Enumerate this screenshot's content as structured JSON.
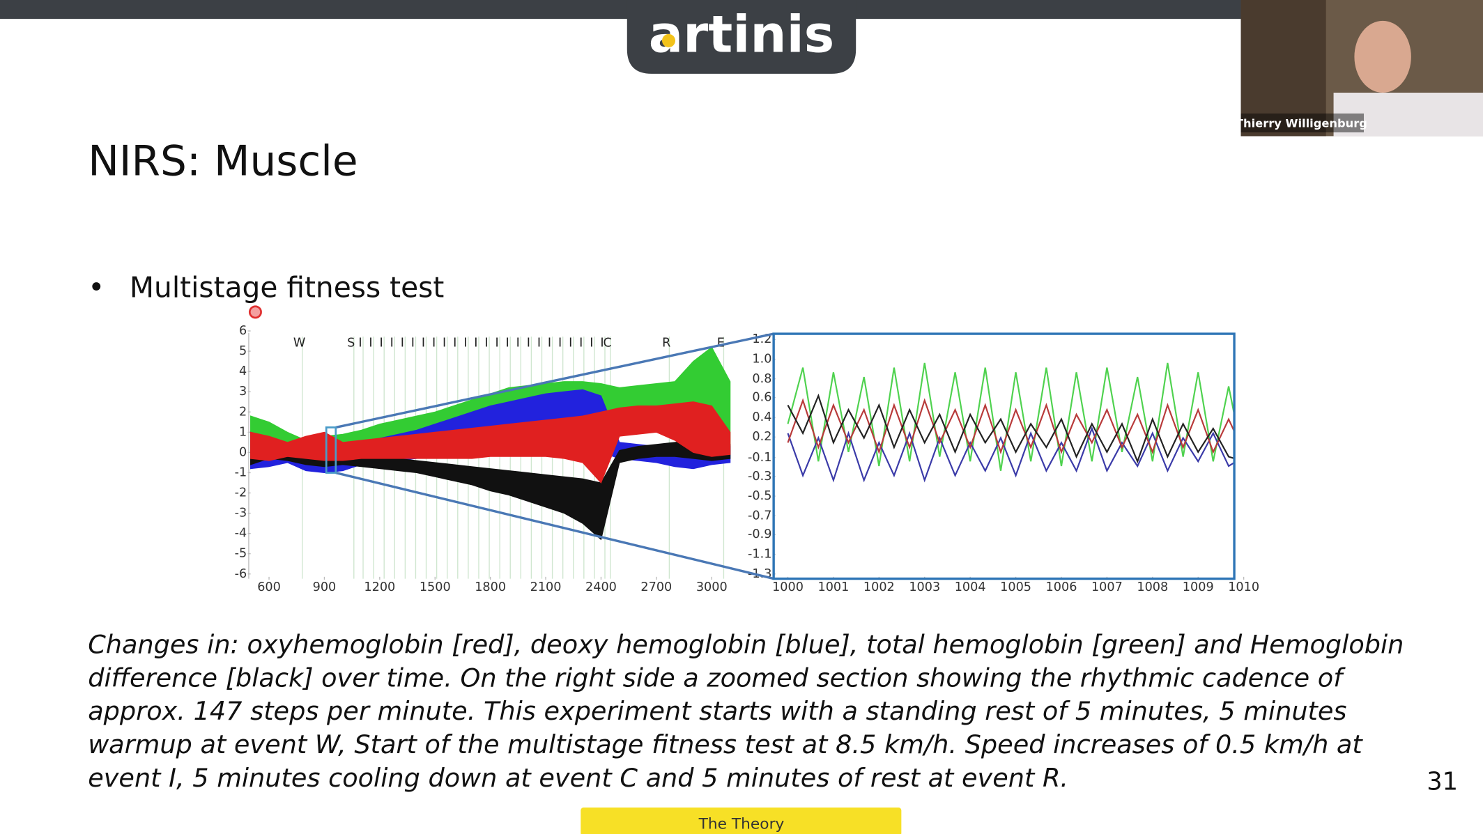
{
  "logo": "artinis",
  "webcam": {
    "name": "Thierry Willigenburg"
  },
  "title": "NIRS: Muscle",
  "bullets": [
    "Multistage fitness test"
  ],
  "chart_data": [
    {
      "type": "band",
      "x": [
        500,
        600,
        700,
        800,
        900,
        1000,
        1100,
        1200,
        1300,
        1400,
        1500,
        1600,
        1700,
        1800,
        1900,
        2000,
        2100,
        2200,
        2300,
        2400,
        2500,
        2600,
        2700,
        2800,
        2900,
        3000,
        3100
      ],
      "series": [
        {
          "color": "#33cc33",
          "high": [
            1.8,
            1.5,
            1.0,
            0.6,
            0.8,
            0.9,
            1.1,
            1.4,
            1.6,
            1.8,
            2.0,
            2.3,
            2.6,
            2.9,
            3.2,
            3.3,
            3.4,
            3.5,
            3.5,
            3.4,
            3.2,
            3.3,
            3.4,
            3.5,
            4.5,
            5.2,
            3.5
          ],
          "low": [
            -0.8,
            -0.6,
            -0.2,
            -0.6,
            -0.8,
            -0.3,
            0.2,
            0.3,
            0.4,
            0.5,
            0.6,
            0.7,
            0.8,
            0.9,
            1.0,
            1.1,
            1.2,
            1.2,
            1.0,
            0.5,
            1.5,
            1.6,
            1.6,
            0.8,
            0.2,
            0.0,
            -0.1
          ]
        },
        {
          "color": "#2222dd",
          "high": [
            1.0,
            0.6,
            0.3,
            0.0,
            0.2,
            0.4,
            0.5,
            0.7,
            0.9,
            1.1,
            1.4,
            1.7,
            2.0,
            2.3,
            2.5,
            2.7,
            2.9,
            3.0,
            3.1,
            2.8,
            0.5,
            0.4,
            0.3,
            0.2,
            0.3,
            0.4,
            0.3
          ],
          "low": [
            -0.8,
            -0.7,
            -0.5,
            -0.9,
            -1.0,
            -0.9,
            -0.6,
            -0.5,
            -0.4,
            -0.3,
            -0.2,
            -0.1,
            0.0,
            0.1,
            0.2,
            0.3,
            0.4,
            0.5,
            0.6,
            0.0,
            -0.3,
            -0.4,
            -0.5,
            -0.7,
            -0.8,
            -0.6,
            -0.5
          ]
        },
        {
          "color": "#111111",
          "high": [
            0.6,
            0.4,
            0.2,
            0.1,
            0.2,
            0.0,
            -0.1,
            -0.2,
            -0.3,
            -0.4,
            -0.5,
            -0.6,
            -0.7,
            -0.8,
            -0.9,
            -1.0,
            -1.1,
            -1.2,
            -1.3,
            -1.5,
            0.1,
            0.3,
            0.4,
            0.5,
            0.6,
            0.5,
            0.4
          ],
          "low": [
            -0.6,
            -0.3,
            -0.4,
            -0.6,
            -0.7,
            -0.6,
            -0.7,
            -0.8,
            -0.9,
            -1.0,
            -1.2,
            -1.4,
            -1.6,
            -1.9,
            -2.1,
            -2.4,
            -2.7,
            -3.0,
            -3.5,
            -4.3,
            -0.5,
            -0.3,
            -0.2,
            -0.2,
            -0.3,
            -0.4,
            -0.3
          ]
        },
        {
          "color": "#e02020",
          "high": [
            1.0,
            0.8,
            0.5,
            0.8,
            1.0,
            0.5,
            0.6,
            0.7,
            0.8,
            0.9,
            1.0,
            1.1,
            1.2,
            1.3,
            1.4,
            1.5,
            1.6,
            1.7,
            1.8,
            2.0,
            2.2,
            2.3,
            2.3,
            2.4,
            2.5,
            2.3,
            1.0
          ],
          "low": [
            -0.3,
            -0.4,
            -0.2,
            -0.3,
            -0.4,
            -0.4,
            -0.3,
            -0.3,
            -0.3,
            -0.3,
            -0.3,
            -0.3,
            -0.3,
            -0.2,
            -0.2,
            -0.2,
            -0.2,
            -0.3,
            -0.5,
            -1.5,
            0.8,
            0.9,
            1.0,
            0.6,
            0.0,
            -0.2,
            -0.1
          ]
        }
      ],
      "xlim": [
        490,
        3100
      ],
      "xticks": [
        600,
        900,
        1200,
        1500,
        1800,
        2100,
        2400,
        2700,
        3000
      ],
      "ylim": [
        -6,
        6
      ],
      "yticks": [
        -6,
        -5,
        -4,
        -3,
        -2,
        -1,
        0,
        1,
        2,
        3,
        4,
        5,
        6
      ],
      "events": [
        {
          "x": 780,
          "label": "W"
        },
        {
          "x": 1060,
          "label": "S"
        },
        {
          "x": 1110,
          "label": "I"
        },
        {
          "x": 1167,
          "label": "I"
        },
        {
          "x": 1224,
          "label": "I"
        },
        {
          "x": 1281,
          "label": "I"
        },
        {
          "x": 1338,
          "label": "I"
        },
        {
          "x": 1395,
          "label": "I"
        },
        {
          "x": 1452,
          "label": "I"
        },
        {
          "x": 1509,
          "label": "I"
        },
        {
          "x": 1566,
          "label": "I"
        },
        {
          "x": 1623,
          "label": "I"
        },
        {
          "x": 1680,
          "label": "I"
        },
        {
          "x": 1737,
          "label": "I"
        },
        {
          "x": 1794,
          "label": "I"
        },
        {
          "x": 1851,
          "label": "I"
        },
        {
          "x": 1908,
          "label": "I"
        },
        {
          "x": 1965,
          "label": "I"
        },
        {
          "x": 2022,
          "label": "I"
        },
        {
          "x": 2079,
          "label": "I"
        },
        {
          "x": 2136,
          "label": "I"
        },
        {
          "x": 2193,
          "label": "I"
        },
        {
          "x": 2250,
          "label": "I"
        },
        {
          "x": 2307,
          "label": "I"
        },
        {
          "x": 2364,
          "label": "I"
        },
        {
          "x": 2421,
          "label": "I"
        },
        {
          "x": 2450,
          "label": "C"
        },
        {
          "x": 2770,
          "label": "R"
        },
        {
          "x": 3065,
          "label": "E"
        }
      ]
    },
    {
      "type": "line",
      "x": [
        1000,
        1000.33,
        1000.67,
        1001,
        1001.33,
        1001.67,
        1002,
        1002.33,
        1002.67,
        1003,
        1003.33,
        1003.67,
        1004,
        1004.33,
        1004.67,
        1005,
        1005.33,
        1005.67,
        1006,
        1006.33,
        1006.67,
        1007,
        1007.33,
        1007.67,
        1008,
        1008.33,
        1008.67,
        1009,
        1009.33,
        1009.67,
        1010
      ],
      "series": [
        {
          "color": "#4fd24f",
          "values": [
            0.3,
            0.9,
            -0.1,
            0.85,
            0.0,
            0.8,
            -0.15,
            0.9,
            -0.1,
            0.95,
            -0.05,
            0.85,
            -0.1,
            0.9,
            -0.2,
            0.85,
            -0.1,
            0.9,
            -0.15,
            0.85,
            -0.1,
            0.9,
            0.0,
            0.8,
            -0.1,
            0.95,
            -0.05,
            0.85,
            -0.1,
            0.7,
            -0.1
          ]
        },
        {
          "color": "#3a3aa8",
          "values": [
            0.2,
            -0.25,
            0.15,
            -0.3,
            0.2,
            -0.3,
            0.1,
            -0.25,
            0.2,
            -0.3,
            0.15,
            -0.25,
            0.1,
            -0.2,
            0.15,
            -0.25,
            0.2,
            -0.2,
            0.1,
            -0.2,
            0.25,
            -0.2,
            0.1,
            -0.15,
            0.2,
            -0.2,
            0.15,
            -0.1,
            0.2,
            -0.15,
            -0.05
          ]
        },
        {
          "color": "#b83a3a",
          "values": [
            0.1,
            0.55,
            0.05,
            0.5,
            0.1,
            0.45,
            0.0,
            0.5,
            0.05,
            0.55,
            0.1,
            0.45,
            0.05,
            0.5,
            0.0,
            0.45,
            0.05,
            0.5,
            0.0,
            0.4,
            0.1,
            0.45,
            0.05,
            0.4,
            0.0,
            0.5,
            0.05,
            0.45,
            0.0,
            0.35,
            0.0
          ]
        },
        {
          "color": "#222222",
          "values": [
            0.5,
            0.2,
            0.6,
            0.1,
            0.45,
            0.15,
            0.5,
            0.05,
            0.45,
            0.1,
            0.4,
            0.0,
            0.4,
            0.1,
            0.35,
            0.0,
            0.3,
            0.05,
            0.35,
            -0.05,
            0.3,
            0.0,
            0.3,
            -0.1,
            0.35,
            -0.05,
            0.3,
            0.0,
            0.25,
            -0.05,
            -0.1
          ]
        }
      ],
      "xlim": [
        1000,
        1010
      ],
      "xticks": [
        1000,
        1001,
        1002,
        1003,
        1004,
        1005,
        1006,
        1007,
        1008,
        1009,
        1010
      ],
      "ylim": [
        -1.3,
        1.2
      ],
      "yticks": [
        1.2,
        {
          "value": 0.99,
          "label": "1.0"
        },
        {
          "value": 0.78,
          "label": "0.8"
        },
        {
          "value": 0.58,
          "label": "0.6"
        },
        {
          "value": 0.37,
          "label": "0.4"
        },
        {
          "value": 0.16,
          "label": "0.2"
        },
        {
          "value": -0.06,
          "label": "-0.1"
        },
        {
          "value": -0.26,
          "label": "-0.3"
        },
        {
          "value": -0.47,
          "label": "-0.5"
        },
        {
          "value": -0.68,
          "label": "-0.7"
        },
        {
          "value": -0.88,
          "label": "-0.9"
        },
        {
          "value": -1.09,
          "label": "-1.1"
        },
        -1.3
      ]
    }
  ],
  "caption": [
    "Changes in: oxyhemoglobin [red], deoxy hemoglobin [blue], total hemoglobin [green] and Hemoglobin",
    "difference [black] over time. On the right side a zoomed section showing the rhythmic cadence of",
    "approx. 147 steps per minute. This experiment starts with a standing rest of 5 minutes, 5 minutes",
    "warmup at event W, Start of the multistage fitness test at 8.5 km/h. Speed increases of 0.5 km/h at",
    "event I, 5 minutes cooling down at event C and 5 minutes of rest at event R."
  ],
  "page_number": "31",
  "footer_tab": "The Theory"
}
